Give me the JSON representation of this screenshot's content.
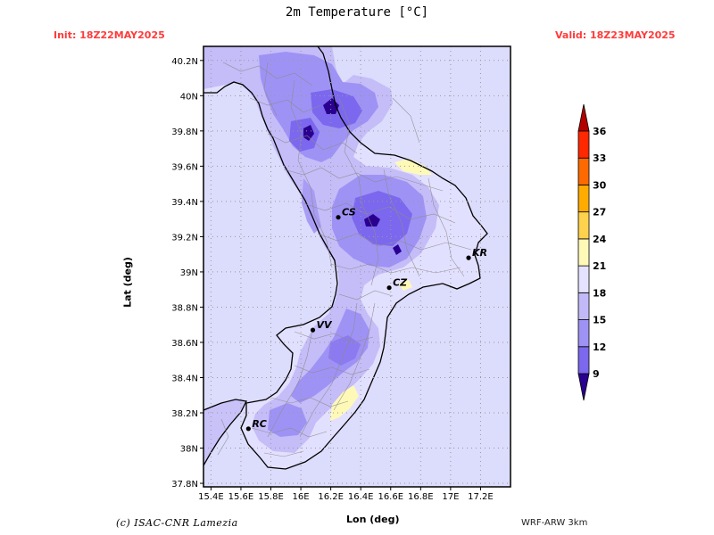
{
  "title": "2m Temperature [°C]",
  "init": "Init: 18Z22MAY2025",
  "valid": "Valid: 18Z23MAY2025",
  "footer": {
    "copyright": "(c) ISAC-CNR Lamezia",
    "model": "WRF-ARW 3km"
  },
  "axes": {
    "xlabel": "Lon (deg)",
    "ylabel": "Lat (deg)",
    "lon_ticks": [
      "15.4E",
      "15.6E",
      "15.8E",
      "16E",
      "16.2E",
      "16.4E",
      "16.6E",
      "16.8E",
      "17E",
      "17.2E"
    ],
    "lat_ticks": [
      "37.8N",
      "38N",
      "38.2N",
      "38.4N",
      "38.6N",
      "38.8N",
      "39N",
      "39.2N",
      "39.4N",
      "39.6N",
      "39.8N",
      "40N",
      "40.2N"
    ],
    "lon_range": [
      15.35,
      17.4
    ],
    "lat_range": [
      37.78,
      40.28
    ],
    "grid": true
  },
  "colorbar": {
    "levels": [
      "9",
      "12",
      "15",
      "18",
      "21",
      "24",
      "27",
      "30",
      "33",
      "36"
    ],
    "colors": [
      "#7b68ee",
      "#9f92f5",
      "#c2baf8",
      "#e4e2ff",
      "#fff9b8",
      "#ffd24d",
      "#ffab00",
      "#ff6a00",
      "#ff2800"
    ],
    "under_color": "#2a0090",
    "over_color": "#b40000"
  },
  "cities": [
    {
      "code": "CS",
      "lon": 16.25,
      "lat": 39.31
    },
    {
      "code": "KR",
      "lon": 17.12,
      "lat": 39.08
    },
    {
      "code": "CZ",
      "lon": 16.59,
      "lat": 38.91
    },
    {
      "code": "VV",
      "lon": 16.08,
      "lat": 38.67
    },
    {
      "code": "RC",
      "lon": 15.65,
      "lat": 38.11
    }
  ],
  "sea_color": "#dcdcfc"
}
